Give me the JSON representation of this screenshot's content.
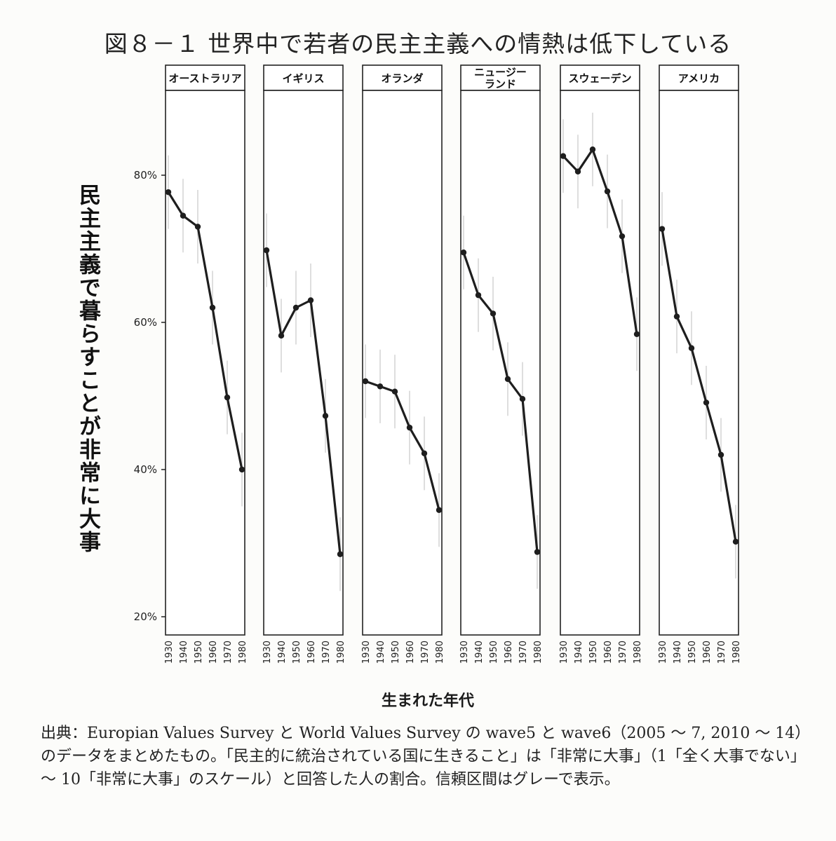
{
  "title": "図８－１ 世界中で若者の民主主義への情熱は低下している",
  "source_note": "出典：Europian Values Survey と World Values Survey の wave5 と wave6（2005 ～ 7, 2010 ～ 14）のデータをまとめたもの。「民主的に統治されている国に生きること」は「非常に大事」（1「全く大事でない」～ 10「非常に大事」のスケール）と回答した人の割合。信頼区間はグレーで表示。",
  "chart_data": {
    "type": "line",
    "title": "図８－１ 世界中で若者の民主主義への情熱は低下している",
    "ylabel": "民主主義で暮らすことが非常に大事",
    "xlabel": "生まれた年代",
    "ylim": [
      18,
      88
    ],
    "y_ticks": [
      "20%",
      "40%",
      "60%",
      "80%"
    ],
    "y_tick_values": [
      20,
      40,
      60,
      80
    ],
    "x": [
      "1930",
      "1940",
      "1950",
      "1960",
      "1970",
      "1980"
    ],
    "panels": [
      {
        "name": "オーストラリア",
        "values": [
          77.7,
          74.5,
          73.0,
          62.0,
          49.8,
          40.0
        ]
      },
      {
        "name": "イギリス",
        "values": [
          69.8,
          58.2,
          62.0,
          63.0,
          47.3,
          28.5
        ]
      },
      {
        "name": "オランダ",
        "values": [
          52.0,
          51.3,
          50.6,
          45.7,
          42.2,
          34.5
        ]
      },
      {
        "name": "ニュージー\nランド",
        "values": [
          69.5,
          63.7,
          61.2,
          52.3,
          49.6,
          28.8
        ]
      },
      {
        "name": "スウェーデン",
        "values": [
          82.6,
          80.5,
          83.5,
          77.8,
          71.7,
          58.4
        ]
      },
      {
        "name": "アメリカ",
        "values": [
          72.7,
          60.8,
          56.5,
          49.1,
          42.0,
          30.2
        ]
      }
    ],
    "confidence_interval_color": "#cfcfcf",
    "line_color": "#1e1e1e"
  }
}
